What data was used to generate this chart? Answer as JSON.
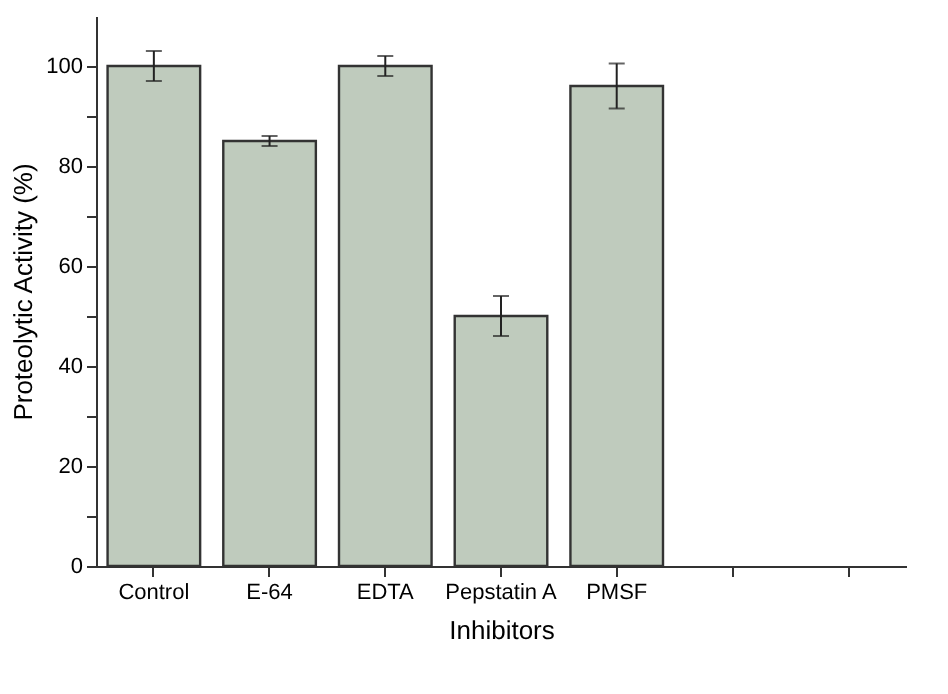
{
  "chart_data": {
    "type": "bar",
    "xlabel": "Inhibitors",
    "ylabel": "Proteolytic Activity (%)",
    "categories": [
      "Control",
      "E-64",
      "EDTA",
      "Pepstatin A",
      "PMSF",
      null,
      null
    ],
    "values": [
      100,
      85,
      100,
      50,
      96,
      null,
      null
    ],
    "errors": [
      3,
      1,
      2,
      4,
      4.5,
      null,
      null
    ],
    "color": "#bfcbbd",
    "ylim": [
      0,
      110
    ],
    "yticks": [
      0,
      {
        "value": 10,
        "label": null
      },
      20,
      {
        "value": 30,
        "label": null
      },
      40,
      {
        "value": 50,
        "label": null
      },
      60,
      {
        "value": 70,
        "label": null
      },
      80,
      {
        "value": 90,
        "label": null
      },
      100
    ],
    "grid": false
  }
}
